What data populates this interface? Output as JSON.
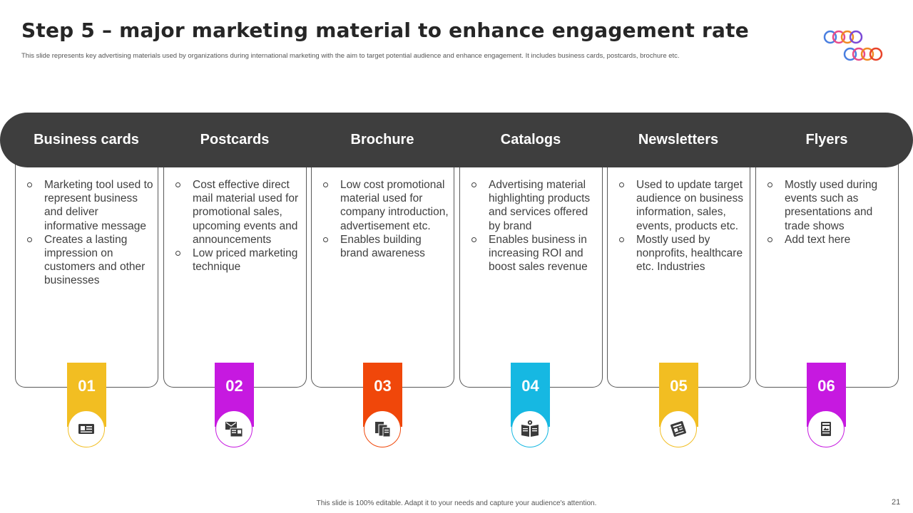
{
  "slide": {
    "title": "Step 5 – major marketing material to enhance engagement rate",
    "subtitle": "This slide represents key advertising materials used by organizations during international marketing  with the aim  to target potential audience and enhance engagement.  It includes business cards, postcards, brochure etc.",
    "footer": "This slide is 100% editable.  Adapt it to your needs and capture your audience's attention.",
    "page_number": "21"
  },
  "columns": [
    {
      "title": "Business cards",
      "number": "01",
      "color": "#F2BE22",
      "icon": "business-card-icon",
      "bullets": [
        "Marketing tool used to represent business and deliver informative message",
        "Creates a lasting impression on customers and other businesses"
      ]
    },
    {
      "title": "Postcards",
      "number": "02",
      "color": "#C619E0",
      "icon": "postcard-icon",
      "bullets": [
        "Cost effective direct mail material used for promotional sales, upcoming events and announcements",
        "Low priced marketing technique"
      ]
    },
    {
      "title": "Brochure",
      "number": "03",
      "color": "#F0470A",
      "icon": "brochure-icon",
      "bullets": [
        "Low cost promotional material used for company introduction, advertisement etc.",
        "Enables building brand awareness"
      ]
    },
    {
      "title": "Catalogs",
      "number": "04",
      "color": "#16B8E2",
      "icon": "catalog-icon",
      "bullets": [
        "Advertising material highlighting products and services offered by brand",
        "Enables business in increasing ROI and boost sales revenue"
      ]
    },
    {
      "title": "Newsletters",
      "number": "05",
      "color": "#F2BE22",
      "icon": "newsletter-icon",
      "bullets": [
        "Used to update target audience on business information, sales, events, products etc.",
        "Mostly used by nonprofits, healthcare etc. Industries"
      ]
    },
    {
      "title": "Flyers",
      "number": "06",
      "color": "#C619E0",
      "icon": "flyer-icon",
      "bullets": [
        "Mostly used during events such as presentations and trade shows",
        "Add text here"
      ]
    }
  ]
}
